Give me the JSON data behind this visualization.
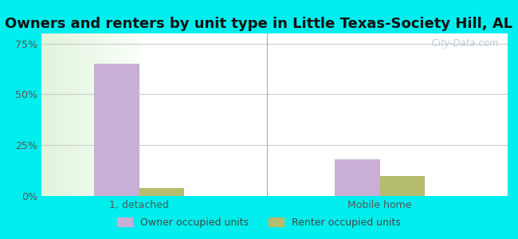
{
  "title": "Owners and renters by unit type in Little Texas-Society Hill, AL",
  "categories": [
    "1, detached",
    "Mobile home"
  ],
  "owner_values": [
    65,
    18
  ],
  "renter_values": [
    4,
    10
  ],
  "owner_color": "#c9aed6",
  "renter_color": "#b5bc6e",
  "yticks": [
    0,
    25,
    50,
    75
  ],
  "ytick_labels": [
    "0%",
    "25%",
    "50%",
    "75%"
  ],
  "ylim": [
    0,
    80
  ],
  "background_color": "#00eeee",
  "plot_bg_left": "#d8edcc",
  "plot_bg_right": "#f8fff8",
  "watermark": "  City-Data.com",
  "legend_owner": "Owner occupied units",
  "legend_renter": "Renter occupied units",
  "title_fontsize": 13,
  "bar_width": 0.3,
  "group_positions": [
    1.0,
    2.6
  ]
}
